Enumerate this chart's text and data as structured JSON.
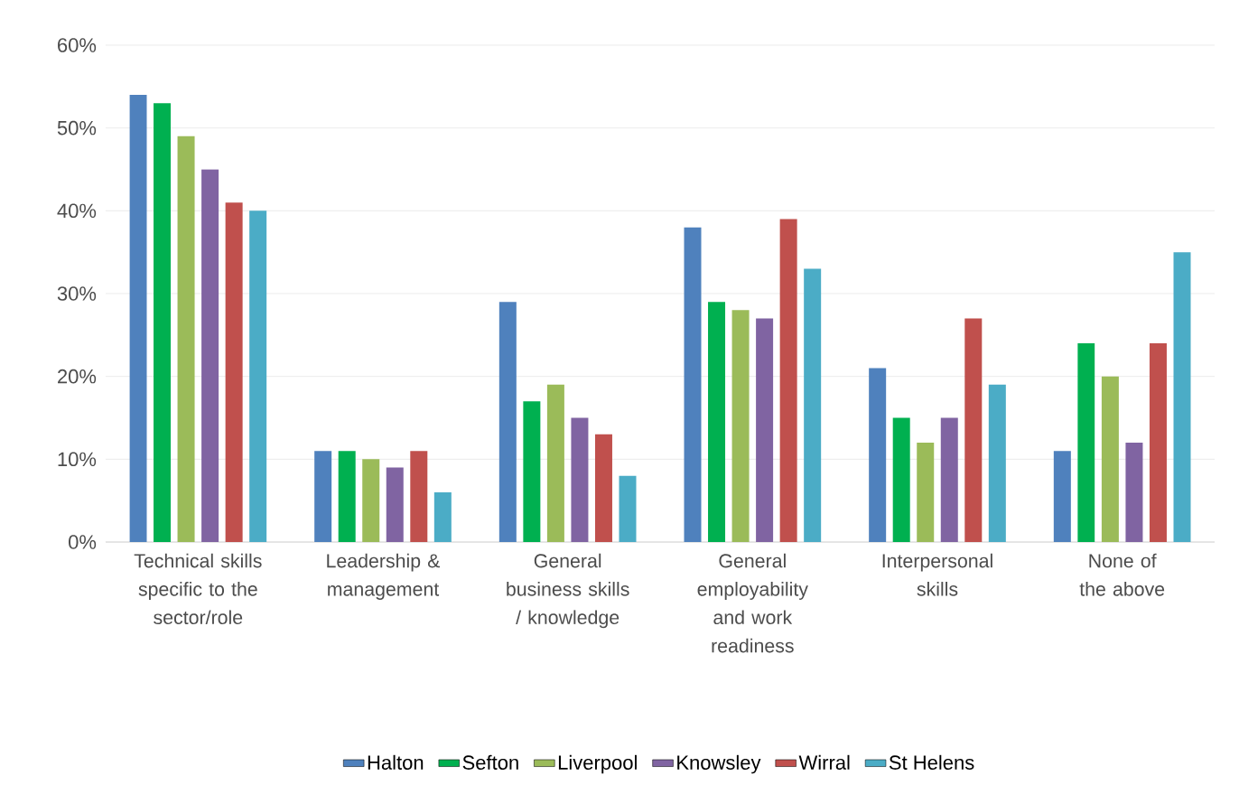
{
  "chart_data": {
    "type": "bar",
    "categories": [
      "Technical skills specific to the sector/role",
      "Leadership & management",
      "General business skills / knowledge",
      "General employability and work readiness",
      "Interpersonal skills",
      "None of the above"
    ],
    "series": [
      {
        "name": "Halton",
        "color": "#4f81bd",
        "values": [
          54,
          11,
          29,
          38,
          21,
          11
        ]
      },
      {
        "name": "Sefton",
        "color": "#00b050",
        "values": [
          53,
          11,
          17,
          29,
          15,
          24
        ]
      },
      {
        "name": "Liverpool",
        "color": "#9bbb59",
        "values": [
          49,
          10,
          19,
          28,
          12,
          20
        ]
      },
      {
        "name": "Knowsley",
        "color": "#8064a2",
        "values": [
          45,
          9,
          15,
          27,
          15,
          12
        ]
      },
      {
        "name": "Wirral",
        "color": "#c0504d",
        "values": [
          41,
          11,
          13,
          39,
          27,
          24
        ]
      },
      {
        "name": "St Helens",
        "color": "#4bacc6",
        "values": [
          40,
          6,
          8,
          33,
          19,
          35
        ]
      }
    ],
    "ylim": [
      0,
      60
    ],
    "yticks": [
      {
        "value": 0,
        "label": "0%"
      },
      {
        "value": 10,
        "label": "10%"
      },
      {
        "value": 20,
        "label": "20%"
      },
      {
        "value": 30,
        "label": "30%"
      },
      {
        "value": 40,
        "label": "40%"
      },
      {
        "value": 50,
        "label": "50%"
      },
      {
        "value": 60,
        "label": "60%"
      }
    ],
    "grid": "y",
    "legend": "bottom"
  }
}
